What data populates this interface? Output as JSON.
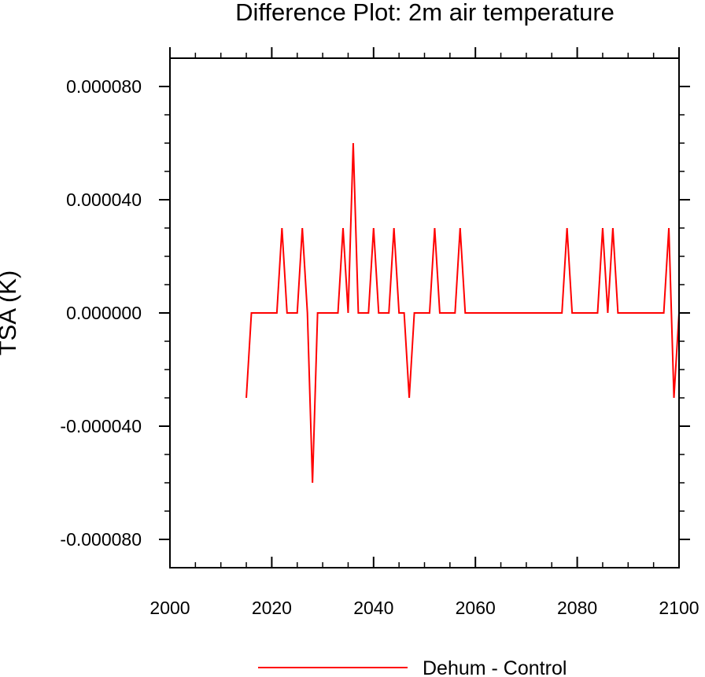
{
  "chart_data": {
    "type": "line",
    "title": "Difference Plot: 2m air temperature",
    "xlabel": "",
    "ylabel": "TSA  (K)",
    "xlim": [
      2000,
      2100
    ],
    "ylim": [
      -9e-05,
      9e-05
    ],
    "xticks": [
      2000,
      2020,
      2040,
      2060,
      2080,
      2100
    ],
    "xtick_labels": [
      "2000",
      "2020",
      "2040",
      "2060",
      "2080",
      "2100"
    ],
    "yticks": [
      -8e-05,
      -4e-05,
      0,
      4e-05,
      8e-05
    ],
    "ytick_labels": [
      "-0.000080",
      "-0.000040",
      "0.000000",
      "0.000040",
      "0.000080"
    ],
    "grid": false,
    "legend_position": "bottom-center",
    "series": [
      {
        "name": "Dehum - Control",
        "color": "#ff0000",
        "x": [
          2015,
          2016,
          2017,
          2018,
          2019,
          2020,
          2021,
          2022,
          2023,
          2024,
          2025,
          2026,
          2027,
          2028,
          2029,
          2030,
          2031,
          2032,
          2033,
          2034,
          2035,
          2036,
          2037,
          2038,
          2039,
          2040,
          2041,
          2042,
          2043,
          2044,
          2045,
          2046,
          2047,
          2048,
          2049,
          2050,
          2051,
          2052,
          2053,
          2054,
          2055,
          2056,
          2057,
          2058,
          2059,
          2060,
          2061,
          2062,
          2063,
          2064,
          2065,
          2066,
          2067,
          2068,
          2069,
          2070,
          2071,
          2072,
          2073,
          2074,
          2075,
          2076,
          2077,
          2078,
          2079,
          2080,
          2081,
          2082,
          2083,
          2084,
          2085,
          2086,
          2087,
          2088,
          2089,
          2090,
          2091,
          2092,
          2093,
          2094,
          2095,
          2096,
          2097,
          2098,
          2099,
          2100
        ],
        "y": [
          -3e-05,
          0,
          0,
          0,
          0,
          0,
          0,
          3e-05,
          0,
          0,
          0,
          3e-05,
          0,
          -6e-05,
          0,
          0,
          0,
          0,
          0,
          3e-05,
          0,
          6e-05,
          0,
          0,
          0,
          3e-05,
          0,
          0,
          0,
          3e-05,
          0,
          0,
          -3e-05,
          0,
          0,
          0,
          0,
          3e-05,
          0,
          0,
          0,
          0,
          3e-05,
          0,
          0,
          0,
          0,
          0,
          0,
          0,
          0,
          0,
          0,
          0,
          0,
          0,
          0,
          0,
          0,
          0,
          0,
          0,
          0,
          3e-05,
          0,
          0,
          0,
          0,
          0,
          0,
          3e-05,
          0,
          3e-05,
          0,
          0,
          0,
          0,
          0,
          0,
          0,
          0,
          0,
          0,
          3e-05,
          -3e-05,
          0
        ]
      }
    ]
  }
}
